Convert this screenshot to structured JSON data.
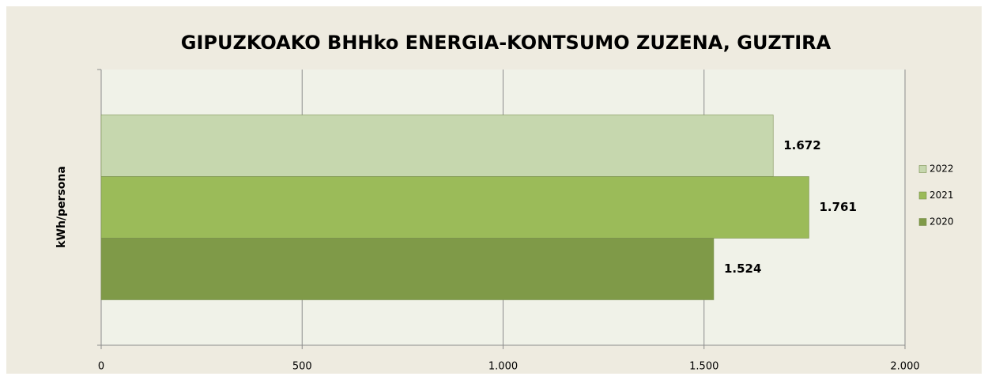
{
  "chart_data": {
    "type": "hbar",
    "title": "GIPUZKOAKO BHHko ENERGIA-KONTSUMO ZUZENA, GUZTIRA",
    "y_label": "kWh/persona",
    "categories": [
      null
    ],
    "series": [
      {
        "name": "2022",
        "color": "#c6d7ae",
        "values": [
          1672
        ],
        "value_labels": [
          "1.672"
        ]
      },
      {
        "name": "2021",
        "color": "#9bbb59",
        "values": [
          1761
        ],
        "value_labels": [
          "1.761"
        ]
      },
      {
        "name": "2020",
        "color": "#7f9a48",
        "values": [
          1524
        ],
        "value_labels": [
          "1.524"
        ]
      }
    ],
    "xlim": [
      0,
      2000
    ],
    "xticks": [
      0,
      500,
      {
        "value": 1000,
        "label": "1.000"
      },
      {
        "value": 1500,
        "label": "1.500"
      },
      {
        "value": 2000,
        "label": "2.000"
      }
    ],
    "grid": true,
    "legend": "right"
  }
}
